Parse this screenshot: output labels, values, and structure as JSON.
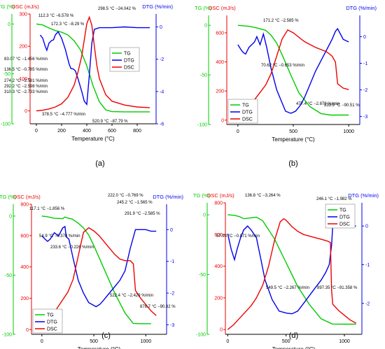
{
  "colors": {
    "tg": "#00cc00",
    "dtg": "#0000ee",
    "dsc": "#ee0000",
    "axis": "#000000"
  },
  "panels": [
    {
      "label": "(a)",
      "chart_data": {
        "type": "line",
        "xlabel": "Temperature (°C)",
        "y_tg_label": "TG (%)",
        "y_dsc_label": "DSC (mJ/s)",
        "y_dtg_label": "DTG (%/min)",
        "xlim": [
          -50,
          950
        ],
        "xticks": [
          0,
          200,
          400,
          600,
          800
        ],
        "ylim_tg": [
          -100,
          10
        ],
        "yticks_tg": [
          -100,
          -50,
          0
        ],
        "ylim_dsc": [
          -40,
          300
        ],
        "yticks_dsc": [
          0,
          100,
          200,
          300
        ],
        "ylim_dtg": [
          -6,
          0.8
        ],
        "yticks_dtg": [
          -6,
          -4,
          -2,
          0
        ],
        "legend": [
          "TG",
          "DTG",
          "DSC"
        ],
        "legend_position": "center-right",
        "series": [
          {
            "name": "TG",
            "axis": "tg",
            "x": [
              0,
              50,
              100,
              150,
              200,
              250,
              300,
              350,
              400,
              450,
              500,
              550,
              600,
              700,
              800,
              900
            ],
            "y": [
              0,
              -1,
              -4,
              -6.6,
              -8.3,
              -11,
              -17,
              -26,
              -42,
              -62,
              -78,
              -86,
              -87.8,
              -88,
              -88,
              -88
            ]
          },
          {
            "name": "DTG",
            "axis": "dtg",
            "x": [
              30,
              50,
              70,
              83,
              100,
              120,
              136,
              150,
              172,
              200,
              230,
              260,
              274,
              292,
              310,
              330,
              360,
              380,
              400,
              420,
              440,
              460,
              500,
              600,
              700,
              800,
              900
            ],
            "y": [
              -0.5,
              -0.7,
              -1.2,
              -1.45,
              -1.0,
              -0.85,
              -0.8,
              -0.5,
              -0.3,
              -0.7,
              -1.4,
              -2.3,
              -2.58,
              -2.6,
              -2.73,
              -3.2,
              -4.0,
              -4.6,
              -4.8,
              -3.0,
              -1.0,
              -0.15,
              -0.05,
              -0.05,
              0,
              -0.05,
              -0.05
            ]
          },
          {
            "name": "DSC",
            "axis": "dsc",
            "x": [
              0,
              50,
              100,
              150,
              200,
              250,
              300,
              330,
              360,
              380,
              400,
              420,
              440,
              460,
              480,
              500,
              550,
              600,
              700,
              800,
              900
            ],
            "y": [
              0,
              2,
              6,
              12,
              22,
              42,
              80,
              120,
              170,
              220,
              270,
              290,
              265,
              200,
              140,
              100,
              50,
              30,
              18,
              12,
              10
            ]
          }
        ],
        "annotations": [
          "112.3 °C −6.578 %",
          "172.3 °C −8.29 %",
          "298.5 °C −24.042 %",
          "83.07 °C −1.456 %/min",
          "136.5 °C −0.785 %/min",
          "274.2 °C −2.581 %/min",
          "292.2 °C −2.598 %/min",
          "310.3 °C −2.733 %/min",
          "378.5 °C −4.777 %/min",
          "520.9 °C −87.79 %"
        ]
      }
    },
    {
      "label": "(b)",
      "chart_data": {
        "type": "line",
        "xlabel": "Temperature (°C)",
        "y_tg_label": "TG (%)",
        "y_dsc_label": "DSC (mJ/s)",
        "y_dtg_label": "DTG (%/min)",
        "xlim": [
          -100,
          1100
        ],
        "xticks": [
          0,
          500,
          1000
        ],
        "ylim_tg": [
          -100,
          10
        ],
        "yticks_tg": [
          -100,
          -50,
          0
        ],
        "ylim_dsc": [
          -30,
          720
        ],
        "yticks_dsc": [
          0,
          200,
          400,
          600
        ],
        "ylim_dtg": [
          -3.3,
          0.8
        ],
        "yticks_dtg": [
          -3,
          -2,
          -1,
          0
        ],
        "legend": [
          "TG",
          "DTG",
          "DSC"
        ],
        "legend_position": "bottom-left",
        "series": [
          {
            "name": "TG",
            "axis": "tg",
            "x": [
              0,
              50,
              100,
              171,
              250,
              300,
              350,
              400,
              477,
              550,
              650,
              750,
              834,
              900,
              1000
            ],
            "y": [
              0,
              -0.5,
              -1,
              -2.6,
              -5,
              -10,
              -18,
              -30,
              -50,
              -68,
              -82,
              -89,
              -90.5,
              -90.5,
              -90.5
            ]
          },
          {
            "name": "DTG",
            "axis": "dtg",
            "x": [
              0,
              30,
              50,
              70,
              100,
              150,
              171,
              200,
              230,
              260,
              300,
              350,
              400,
              430,
              477,
              520,
              560,
              600,
              650,
              700,
              750,
              800,
              850,
              880,
              900,
              950,
              1000
            ],
            "y": [
              -0.3,
              -0.5,
              -0.6,
              -0.65,
              -0.4,
              -0.2,
              0,
              -0.3,
              0.1,
              -0.4,
              -1.2,
              -2.0,
              -2.5,
              -2.8,
              -2.88,
              -2.8,
              -2.6,
              -2.3,
              -1.8,
              -1.3,
              -0.9,
              -0.5,
              -0.1,
              0.2,
              0.3,
              -0.1,
              -0.2
            ]
          },
          {
            "name": "DSC",
            "axis": "dsc",
            "x": [
              0,
              50,
              100,
              150,
              200,
              250,
              300,
              350,
              400,
              450,
              500,
              600,
              700,
              800,
              850,
              880,
              900,
              950,
              1000
            ],
            "y": [
              0,
              40,
              90,
              140,
              190,
              240,
              320,
              440,
              560,
              620,
              600,
              540,
              500,
              470,
              440,
              400,
              250,
              220,
              210
            ]
          }
        ],
        "annotations": [
          "171.2 °C −2.585 %",
          "70.62 °C −0.653 %/min",
          "477.4 °C −2.879 %/min",
          "833.9 °C −90.51 %"
        ]
      }
    },
    {
      "label": "(c)",
      "chart_data": {
        "type": "line",
        "xlabel": "Temperature (°C)",
        "y_tg_label": "TG (%)",
        "y_dsc_label": "DSC (mJ/s)",
        "y_dtg_label": "DTG (%/min)",
        "xlim": [
          -100,
          1200
        ],
        "xticks": [
          0,
          500,
          1000
        ],
        "ylim_tg": [
          -100,
          10
        ],
        "yticks_tg": [
          -100,
          -50,
          0
        ],
        "ylim_dsc": [
          -30,
          800
        ],
        "yticks_dsc": [
          0,
          200,
          400,
          600,
          800
        ],
        "ylim_dtg": [
          -3.3,
          0.8
        ],
        "yticks_dtg": [
          -3,
          -2,
          -1,
          0
        ],
        "legend": [
          "TG",
          "DTG",
          "DSC"
        ],
        "legend_position": "bottom-left",
        "series": [
          {
            "name": "TG",
            "axis": "tg",
            "x": [
              0,
              50,
              117,
              200,
              222,
              245,
              292,
              350,
              400,
              450,
              500,
              600,
              700,
              800,
              879,
              950,
              1050
            ],
            "y": [
              0,
              -0.5,
              -1.9,
              -2.2,
              -0.8,
              -1.6,
              -2.6,
              -6,
              -10,
              -16,
              -25,
              -45,
              -65,
              -82,
              -90.8,
              -91,
              -91
            ]
          },
          {
            "name": "DTG",
            "axis": "dtg",
            "x": [
              0,
              30,
              55,
              80,
              120,
              160,
              200,
              222,
              234,
              260,
              300,
              350,
              400,
              450,
              522,
              560,
              600,
              650,
              700,
              750,
              800,
              850,
              900,
              950,
              1000,
              1050,
              1100
            ],
            "y": [
              -0.2,
              -0.3,
              -0.37,
              -0.3,
              -0.1,
              -0.2,
              0.05,
              0.1,
              -0.23,
              -0.3,
              -0.9,
              -1.6,
              -2.0,
              -2.3,
              -2.43,
              -2.35,
              -2.2,
              -2.0,
              -1.8,
              -1.6,
              -1.3,
              -0.6,
              0,
              0,
              0,
              -0.05,
              -0.05
            ]
          },
          {
            "name": "DSC",
            "axis": "dsc",
            "x": [
              0,
              50,
              100,
              150,
              200,
              250,
              300,
              350,
              400,
              450,
              500,
              550,
              600,
              650,
              700,
              750,
              800,
              850,
              880,
              900,
              950,
              1000,
              1050,
              1100
            ],
            "y": [
              0,
              40,
              90,
              140,
              190,
              240,
              320,
              470,
              620,
              650,
              630,
              600,
              560,
              520,
              480,
              450,
              440,
              440,
              420,
              250,
              200,
              160,
              120,
              90
            ]
          }
        ],
        "annotations": [
          "222.0 °C −0.769 %",
          "245.2 °C −1.565 %",
          "117.1 °C −1.856 %",
          "291.9 °C −2.585 %",
          "54.9 °C −0.370 %/min",
          "233.6 °C −0.226 %/min",
          "522.4 °C −2.429 %/min",
          "878.7 °C −90.82 %"
        ]
      }
    },
    {
      "label": "(d)",
      "chart_data": {
        "type": "line",
        "xlabel": "Temperature (°C)",
        "y_tg_label": "TG (%)",
        "y_dsc_label": "DSC (mJ/s)",
        "y_dtg_label": "DTG (%/min)",
        "xlim": [
          -20,
          1150
        ],
        "xticks": [
          0,
          500,
          1000
        ],
        "ylim_tg": [
          -100,
          10
        ],
        "yticks_tg": [
          -100,
          -50,
          0
        ],
        "ylim_dsc": [
          -30,
          800
        ],
        "yticks_dsc": [
          0,
          200,
          400,
          600,
          800
        ],
        "ylim_dtg": [
          -2.8,
          0.6
        ],
        "yticks_dtg": [
          -2,
          -1,
          0
        ],
        "legend": [
          "TG",
          "DTG",
          "DSC"
        ],
        "legend_position": "top-right",
        "series": [
          {
            "name": "TG",
            "axis": "tg",
            "x": [
              0,
              58,
              100,
              137,
              200,
              246,
              300,
              400,
              500,
              600,
              700,
              800,
              897,
              1000,
              1100
            ],
            "y": [
              0,
              -0.5,
              -1.5,
              -3.3,
              -2.5,
              -2.0,
              -5,
              -20,
              -40,
              -60,
              -75,
              -87,
              -91.4,
              -91.5,
              -91.5
            ]
          },
          {
            "name": "DTG",
            "axis": "dtg",
            "x": [
              0,
              30,
              58,
              80,
              110,
              137,
              170,
              200,
              246,
              280,
              320,
              380,
              440,
              500,
              550,
              600,
              650,
              700,
              750,
              800,
              840,
              870,
              890,
              900,
              950,
              1000,
              1100
            ],
            "y": [
              -0.2,
              -0.6,
              -0.87,
              -0.6,
              -0.3,
              -0.1,
              0,
              -0.1,
              -0.3,
              -0.8,
              -1.4,
              -1.9,
              -2.2,
              -2.25,
              -2.27,
              -2.2,
              -2.0,
              -1.8,
              -1.6,
              -1.4,
              -1.2,
              -1.0,
              -0.5,
              0,
              0,
              0,
              0
            ]
          },
          {
            "name": "DSC",
            "axis": "dsc",
            "x": [
              0,
              50,
              100,
              150,
              200,
              246,
              300,
              350,
              400,
              450,
              480,
              500,
              550,
              600,
              650,
              700,
              750,
              800,
              850,
              880,
              890,
              900,
              950,
              1000,
              1050,
              1100
            ],
            "y": [
              0,
              30,
              70,
              110,
              150,
              200,
              280,
              400,
              560,
              680,
              700,
              690,
              650,
              620,
              600,
              590,
              580,
              570,
              560,
              550,
              250,
              160,
              120,
              90,
              60,
              40
            ]
          }
        ],
        "annotations": [
          "136.8 °C −3.264 %",
          "246.1 °C −1.982 %",
          "57.93 °C −0.871 %/min",
          "549.5 °C −2.267 %/min",
          "897.35 °C −91.358 %"
        ]
      }
    }
  ]
}
